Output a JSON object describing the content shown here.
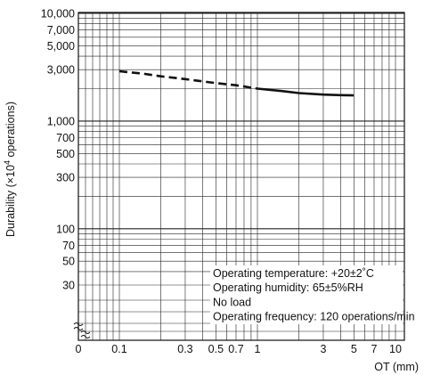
{
  "chart_data": {
    "type": "line",
    "xlabel": "OT (mm)",
    "ylabel_prefix": "Durability (×10",
    "ylabel_sup": "4",
    "ylabel_suffix": " operations)",
    "x_scale": "log",
    "y_scale": "log",
    "xlim": [
      0.1,
      10
    ],
    "ylim": [
      30,
      10000
    ],
    "x_tick_labels": [
      {
        "value": 0.1,
        "label": "0.1"
      },
      {
        "value": 0.3,
        "label": "0.3"
      },
      {
        "value": 0.5,
        "label": "0.5"
      },
      {
        "value": 0.7,
        "label": "0.7"
      },
      {
        "value": 1,
        "label": "1"
      },
      {
        "value": 3,
        "label": "3"
      },
      {
        "value": 5,
        "label": "5"
      },
      {
        "value": 7,
        "label": "7"
      },
      {
        "value": 10,
        "label": "10"
      }
    ],
    "x_zero_label": "0",
    "y_tick_labels": [
      {
        "value": 10000,
        "label": "10,000"
      },
      {
        "value": 7000,
        "label": "7,000"
      },
      {
        "value": 5000,
        "label": "5,000"
      },
      {
        "value": 3000,
        "label": "3,000"
      },
      {
        "value": 1000,
        "label": "1,000"
      },
      {
        "value": 700,
        "label": "700"
      },
      {
        "value": 500,
        "label": "500"
      },
      {
        "value": 300,
        "label": "300"
      },
      {
        "value": 100,
        "label": "100"
      },
      {
        "value": 70,
        "label": "70"
      },
      {
        "value": 50,
        "label": "50"
      },
      {
        "value": 30,
        "label": "30"
      }
    ],
    "grid": true,
    "series": [
      {
        "style": "dashed",
        "x": [
          0.1,
          0.15,
          0.2,
          0.3,
          0.5,
          0.7,
          1.0
        ],
        "y": [
          2900,
          2750,
          2600,
          2450,
          2250,
          2150,
          2000
        ]
      },
      {
        "style": "solid",
        "x": [
          1.0,
          1.5,
          2.0,
          3.0,
          4.0,
          5.0
        ],
        "y": [
          2000,
          1900,
          1820,
          1760,
          1740,
          1730
        ]
      }
    ],
    "conditions": [
      "Operating temperature: +20±2˚C",
      "Operating humidity: 65±5%RH",
      "No load",
      "Operating frequency: 120 operations/min"
    ]
  }
}
